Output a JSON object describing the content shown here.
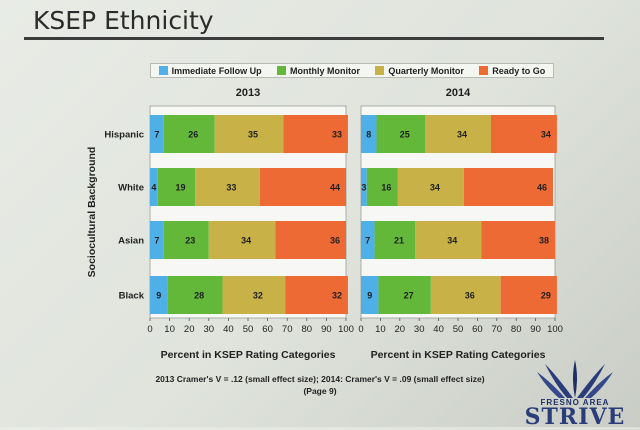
{
  "slide": {
    "title": "KSEP Ethnicity",
    "footnote_line1": "2013 Cramer's V = .12 (small effect size); 2014: Cramer's V = .09 (small effect size)",
    "footnote_line2": "(Page 9)",
    "logo_sub": "FRESNO AREA",
    "logo_main": "STRIVE"
  },
  "colors": {
    "Immediate Follow Up": "#4fb0e8",
    "Monthly Monitor": "#63b83a",
    "Quarterly Monitor": "#c8b248",
    "Ready to Go": "#ee6a34"
  },
  "chart_data": [
    {
      "type": "bar",
      "orientation": "horizontal",
      "stacked": true,
      "title": "2013",
      "ylabel": "Sociocultural Background",
      "xlabel": "Percent in KSEP Rating Categories",
      "xlim": [
        0,
        100
      ],
      "xticks": [
        "0",
        "10",
        "20",
        "30",
        "40",
        "50",
        "60",
        "70",
        "80",
        "90",
        "100"
      ],
      "categories": [
        "Hispanic",
        "White",
        "Asian",
        "Black"
      ],
      "series": [
        {
          "name": "Immediate Follow Up",
          "values": [
            7,
            4,
            7,
            9
          ]
        },
        {
          "name": "Monthly Monitor",
          "values": [
            26,
            19,
            23,
            28
          ]
        },
        {
          "name": "Quarterly Monitor",
          "values": [
            35,
            33,
            34,
            32
          ]
        },
        {
          "name": "Ready to Go",
          "values": [
            33,
            44,
            36,
            32
          ]
        }
      ]
    },
    {
      "type": "bar",
      "orientation": "horizontal",
      "stacked": true,
      "title": "2014",
      "xlabel": "Percent in KSEP Rating Categories",
      "xlim": [
        0,
        100
      ],
      "xticks": [
        "0",
        "10",
        "20",
        "30",
        "40",
        "50",
        "60",
        "70",
        "80",
        "90",
        "100"
      ],
      "categories": [
        "Hispanic",
        "White",
        "Asian",
        "Black"
      ],
      "series": [
        {
          "name": "Immediate Follow Up",
          "values": [
            8,
            3,
            7,
            9
          ]
        },
        {
          "name": "Monthly Monitor",
          "values": [
            25,
            16,
            21,
            27
          ]
        },
        {
          "name": "Quarterly Monitor",
          "values": [
            34,
            34,
            34,
            36
          ]
        },
        {
          "name": "Ready to Go",
          "values": [
            34,
            46,
            38,
            29
          ]
        }
      ]
    }
  ],
  "legend": [
    {
      "label": "Immediate Follow Up"
    },
    {
      "label": "Monthly Monitor"
    },
    {
      "label": "Quarterly Monitor"
    },
    {
      "label": "Ready to Go"
    }
  ]
}
